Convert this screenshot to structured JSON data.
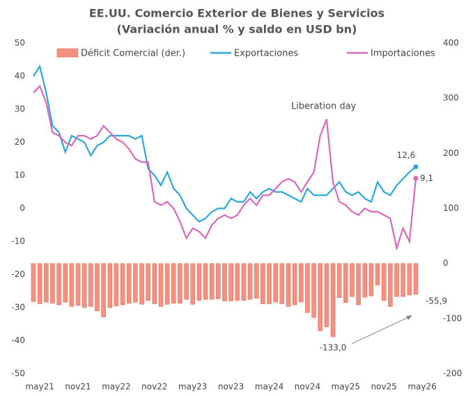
{
  "chart_data": {
    "type": "bar_line",
    "title": "EE.UU. Comercio Exterior de Bienes y Servicios",
    "subtitle": "(Variación anual % y saldo en USD bn)",
    "categories": [
      null,
      "may21",
      null,
      null,
      null,
      null,
      null,
      "nov21",
      null,
      null,
      null,
      null,
      null,
      "may22",
      null,
      null,
      null,
      null,
      null,
      "nov22",
      null,
      null,
      null,
      null,
      null,
      "may23",
      null,
      null,
      null,
      null,
      null,
      "nov23",
      null,
      null,
      null,
      null,
      null,
      "may24",
      null,
      null,
      null,
      null,
      null,
      "nov24",
      null,
      null,
      null,
      null,
      null,
      "may25",
      null,
      null,
      null,
      null,
      null,
      "nov25",
      null,
      null,
      null,
      null,
      null,
      "may26"
    ],
    "series": [
      {
        "name": "Déficit Comercial (der.)",
        "color": "#f4907f",
        "axis": "y2",
        "kind": "bar",
        "values": [
          -69,
          -73,
          -70,
          -72,
          -75,
          -70,
          -78,
          -76,
          -80,
          -78,
          -86,
          -97,
          -80,
          -77,
          -75,
          -72,
          -70,
          -74,
          -67,
          -73,
          -78,
          -74,
          -72,
          -72,
          -65,
          -74,
          -67,
          -65,
          -65,
          -64,
          -68,
          -68,
          -67,
          -67,
          -65,
          -63,
          -73,
          -73,
          -70,
          -73,
          -78,
          -75,
          -70,
          -89,
          -98,
          -122,
          -115,
          -133,
          -62,
          -71,
          -60,
          -75,
          -61,
          -59,
          -39,
          -67,
          -78,
          -60,
          -60,
          -57,
          -55.9,
          null
        ],
        "value_labels": [
          null,
          null,
          null,
          null,
          null,
          null,
          null,
          null,
          null,
          null,
          null,
          null,
          null,
          null,
          null,
          null,
          null,
          null,
          null,
          null,
          null,
          null,
          null,
          null,
          null,
          null,
          null,
          null,
          null,
          null,
          null,
          null,
          null,
          null,
          null,
          null,
          null,
          null,
          null,
          null,
          null,
          null,
          null,
          null,
          null,
          null,
          null,
          "-133,0",
          null,
          null,
          null,
          null,
          null,
          null,
          null,
          null,
          null,
          null,
          null,
          null,
          "-55,9",
          null
        ]
      },
      {
        "name": "Exportaciones",
        "color": "#2aa7df",
        "kind": "line",
        "values": [
          40,
          43,
          35,
          25,
          23,
          17,
          22,
          21,
          20,
          16,
          19,
          20,
          22,
          22,
          22,
          22,
          21,
          22,
          12,
          10,
          7,
          11,
          6,
          4,
          0,
          -2,
          -4,
          -3,
          -1,
          0,
          0,
          3,
          2,
          2,
          5,
          3,
          5,
          6,
          5,
          5,
          4,
          3,
          2,
          6,
          4,
          4,
          4,
          6,
          8,
          5,
          4,
          5,
          3,
          2,
          8,
          5,
          4,
          7,
          9,
          11,
          12.6,
          null
        ],
        "value_labels": [
          null,
          null,
          null,
          null,
          null,
          null,
          null,
          null,
          null,
          null,
          null,
          null,
          null,
          null,
          null,
          null,
          null,
          null,
          null,
          null,
          null,
          null,
          null,
          null,
          null,
          null,
          null,
          null,
          null,
          null,
          null,
          null,
          null,
          null,
          null,
          null,
          null,
          null,
          null,
          null,
          null,
          null,
          null,
          null,
          null,
          null,
          null,
          null,
          null,
          null,
          null,
          null,
          null,
          null,
          null,
          null,
          null,
          null,
          null,
          null,
          "12,6",
          null
        ]
      },
      {
        "name": "Importaciones",
        "color": "#da68ba",
        "kind": "line",
        "values": [
          35,
          37,
          32,
          23,
          22,
          20,
          19,
          22,
          22,
          21,
          22,
          25,
          23,
          21,
          20,
          18,
          15,
          14,
          14,
          2,
          1,
          2,
          0,
          -4,
          -9,
          -6,
          -7,
          -9,
          -5,
          -3,
          -2,
          -3,
          -2,
          1,
          3,
          1,
          4,
          4,
          6,
          8,
          9,
          8,
          5,
          8,
          11,
          22,
          27,
          8,
          2,
          1,
          -1,
          -2,
          0,
          -1,
          -1,
          -2,
          -3,
          -12,
          -6,
          -10,
          9.1,
          null
        ],
        "value_labels": [
          null,
          null,
          null,
          null,
          null,
          null,
          null,
          null,
          null,
          null,
          null,
          null,
          null,
          null,
          null,
          null,
          null,
          null,
          null,
          null,
          null,
          null,
          null,
          null,
          null,
          null,
          null,
          null,
          null,
          null,
          null,
          null,
          null,
          null,
          null,
          null,
          null,
          null,
          null,
          null,
          null,
          null,
          null,
          null,
          null,
          null,
          null,
          null,
          null,
          null,
          null,
          null,
          null,
          null,
          null,
          null,
          null,
          null,
          null,
          null,
          "9,1",
          null
        ]
      }
    ],
    "ylim": [
      -50,
      50
    ],
    "yticks": [
      50,
      40,
      30,
      20,
      10,
      0,
      -10,
      -20,
      -30,
      -40,
      -50
    ],
    "y2lim": [
      -200,
      400
    ],
    "y2ticks": [
      400,
      300,
      200,
      100,
      0,
      -100,
      -200
    ],
    "annotations": [
      "Liberation day"
    ],
    "legend": "top",
    "grid": false
  }
}
